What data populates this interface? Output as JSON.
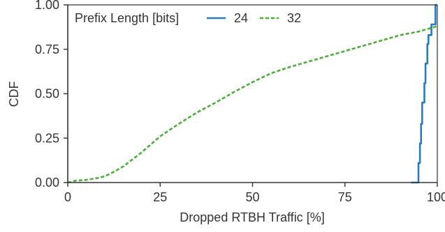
{
  "chart_data": {
    "type": "line",
    "title": "",
    "xlabel": "Dropped RTBH Traffic [%]",
    "ylabel": "CDF",
    "xlim": [
      0,
      100
    ],
    "ylim": [
      0,
      1
    ],
    "x_ticks": [
      "0",
      "25",
      "50",
      "75",
      "100"
    ],
    "y_ticks": [
      "0.00",
      "0.25",
      "0.50",
      "0.75",
      "1.00"
    ],
    "grid": false,
    "legend": {
      "title": "Prefix Length [bits]",
      "placement": "top-left",
      "entries": [
        "24",
        "32"
      ]
    },
    "series": [
      {
        "name": "24",
        "step": true,
        "color": "#2b7bba",
        "line_style": "solid",
        "x": [
          92.9,
          94.9,
          95.3,
          95.6,
          95.9,
          96.5,
          96.8,
          97.3,
          97.6,
          98.4,
          99.2,
          99.5,
          100.0
        ],
        "y": [
          0.0,
          0.11,
          0.22,
          0.33,
          0.45,
          0.56,
          0.67,
          0.78,
          0.83,
          0.89,
          0.89,
          1.0,
          1.0
        ]
      },
      {
        "name": "32",
        "step": false,
        "color": "#4cac3c",
        "line_style": "dashed",
        "x": [
          0,
          2,
          5,
          8,
          10,
          12,
          15,
          20,
          25,
          30,
          35,
          40,
          45,
          50,
          55,
          60,
          65,
          70,
          75,
          80,
          85,
          90,
          95,
          100
        ],
        "y": [
          0.0,
          0.01,
          0.015,
          0.025,
          0.035,
          0.055,
          0.09,
          0.17,
          0.26,
          0.33,
          0.395,
          0.45,
          0.51,
          0.565,
          0.615,
          0.65,
          0.68,
          0.71,
          0.74,
          0.77,
          0.8,
          0.83,
          0.85,
          0.88
        ]
      }
    ]
  }
}
